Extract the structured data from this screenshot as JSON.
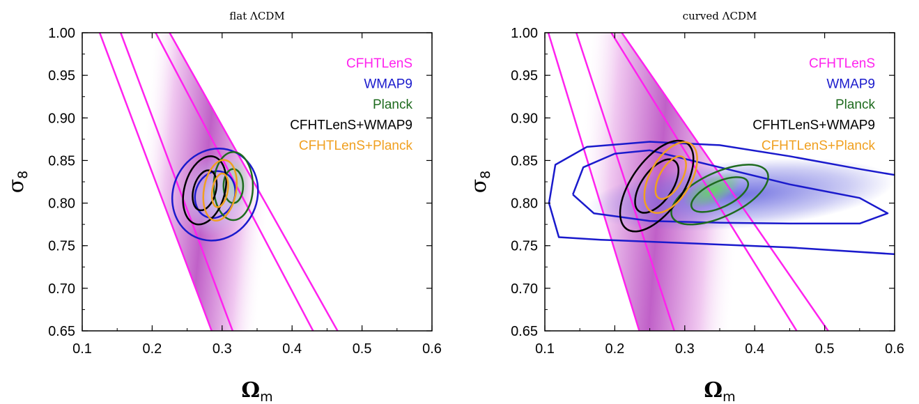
{
  "chart_data": [
    {
      "type": "contour",
      "title": "flat ΛCDM",
      "xlabel": "Ω",
      "xlabel_sub": "m",
      "ylabel": "σ",
      "ylabel_sub": "8",
      "xlim": [
        0.1,
        0.6
      ],
      "ylim": [
        0.65,
        1.0
      ],
      "xticks": [
        "0.1",
        "0.2",
        "0.3",
        "0.4",
        "0.5",
        "0.6"
      ],
      "yticks": [
        "0.65",
        "0.70",
        "0.75",
        "0.80",
        "0.85",
        "0.90",
        "0.95",
        "1.00"
      ],
      "legend_position": "top-right",
      "legend": [
        {
          "name": "CFHTLenS",
          "color": "#ff22ee"
        },
        {
          "name": "WMAP9",
          "color": "#1a1acc"
        },
        {
          "name": "Planck",
          "color": "#1e6b1e"
        },
        {
          "name": "CFHTLenS+WMAP9",
          "color": "#000000"
        },
        {
          "name": "CFHTLenS+Planck",
          "color": "#f0a020"
        }
      ],
      "bands": [
        {
          "series": "CFHTLenS",
          "level": "outer",
          "upper": [
            [
              0.125,
              1.0
            ],
            [
              0.285,
              0.65
            ]
          ],
          "lower": [
            [
              0.225,
              1.0
            ],
            [
              0.465,
              0.65
            ]
          ]
        },
        {
          "series": "CFHTLenS",
          "level": "inner",
          "upper": [
            [
              0.155,
              1.0
            ],
            [
              0.315,
              0.65
            ]
          ],
          "lower": [
            [
              0.205,
              1.0
            ],
            [
              0.43,
              0.65
            ]
          ]
        }
      ],
      "ellipses": [
        {
          "series": "WMAP9",
          "cx": 0.29,
          "cy": 0.81,
          "rx": 0.06,
          "ry": 0.055,
          "rot": 25
        },
        {
          "series": "WMAP9",
          "cx": 0.29,
          "cy": 0.81,
          "rx": 0.028,
          "ry": 0.028,
          "rot": 20
        },
        {
          "series": "Planck",
          "cx": 0.316,
          "cy": 0.82,
          "rx": 0.028,
          "ry": 0.04,
          "rot": 0
        },
        {
          "series": "Planck",
          "cx": 0.316,
          "cy": 0.82,
          "rx": 0.014,
          "ry": 0.02,
          "rot": 0
        },
        {
          "series": "CFHTLenS+WMAP9",
          "cx": 0.275,
          "cy": 0.815,
          "rx": 0.029,
          "ry": 0.041,
          "rot": 15
        },
        {
          "series": "CFHTLenS+WMAP9",
          "cx": 0.275,
          "cy": 0.815,
          "rx": 0.016,
          "ry": 0.024,
          "rot": 15
        },
        {
          "series": "CFHTLenS+Planck",
          "cx": 0.297,
          "cy": 0.815,
          "rx": 0.023,
          "ry": 0.036,
          "rot": 10
        },
        {
          "series": "CFHTLenS+Planck",
          "cx": 0.297,
          "cy": 0.815,
          "rx": 0.011,
          "ry": 0.02,
          "rot": 10
        }
      ],
      "fills": [
        {
          "series": "Planck",
          "cx": 0.316,
          "cy": 0.822,
          "rx": 0.022,
          "ry": 0.03,
          "rot": 0,
          "color": "#8fe08f"
        },
        {
          "series": "WMAP9",
          "cx": 0.29,
          "cy": 0.81,
          "rx": 0.05,
          "ry": 0.05,
          "rot": 20,
          "color": "#c9c9f2"
        }
      ]
    },
    {
      "type": "contour",
      "title": "curved ΛCDM",
      "xlabel": "Ω",
      "xlabel_sub": "m",
      "ylabel": "σ",
      "ylabel_sub": "8",
      "xlim": [
        0.1,
        0.6
      ],
      "ylim": [
        0.65,
        1.0
      ],
      "xticks": [
        "0.1",
        "0.2",
        "0.3",
        "0.4",
        "0.5",
        "0.6"
      ],
      "yticks": [
        "0.65",
        "0.70",
        "0.75",
        "0.80",
        "0.85",
        "0.90",
        "0.95",
        "1.00"
      ],
      "legend_position": "top-right",
      "legend": [
        {
          "name": "CFHTLenS",
          "color": "#ff22ee"
        },
        {
          "name": "WMAP9",
          "color": "#1a1acc"
        },
        {
          "name": "Planck",
          "color": "#1e6b1e"
        },
        {
          "name": "CFHTLenS+WMAP9",
          "color": "#000000"
        },
        {
          "name": "CFHTLenS+Planck",
          "color": "#f0a020"
        }
      ],
      "bands": [
        {
          "series": "CFHTLenS",
          "level": "outer",
          "upper": [
            [
              0.105,
              1.0
            ],
            [
              0.235,
              0.65
            ]
          ],
          "lower": [
            [
              0.21,
              1.0
            ],
            [
              0.505,
              0.65
            ]
          ]
        },
        {
          "series": "CFHTLenS",
          "level": "inner",
          "upper": [
            [
              0.145,
              1.0
            ],
            [
              0.285,
              0.65
            ]
          ],
          "lower": [
            [
              0.195,
              1.0
            ],
            [
              0.46,
              0.65
            ]
          ]
        }
      ],
      "paths": [
        {
          "series": "WMAP9",
          "level": "outer",
          "points": [
            [
              0.6,
              0.74
            ],
            [
              0.45,
              0.748
            ],
            [
              0.3,
              0.753
            ],
            [
              0.18,
              0.757
            ],
            [
              0.12,
              0.76
            ],
            [
              0.106,
              0.8
            ],
            [
              0.115,
              0.845
            ],
            [
              0.16,
              0.866
            ],
            [
              0.25,
              0.872
            ],
            [
              0.35,
              0.868
            ],
            [
              0.45,
              0.855
            ],
            [
              0.55,
              0.84
            ],
            [
              0.6,
              0.833
            ]
          ]
        },
        {
          "series": "WMAP9",
          "level": "inner",
          "points": [
            [
              0.14,
              0.81
            ],
            [
              0.17,
              0.788
            ],
            [
              0.25,
              0.779
            ],
            [
              0.35,
              0.777
            ],
            [
              0.45,
              0.776
            ],
            [
              0.55,
              0.776
            ],
            [
              0.59,
              0.788
            ],
            [
              0.55,
              0.806
            ],
            [
              0.45,
              0.822
            ],
            [
              0.35,
              0.842
            ],
            [
              0.25,
              0.862
            ],
            [
              0.2,
              0.858
            ],
            [
              0.155,
              0.842
            ],
            [
              0.14,
              0.81
            ]
          ]
        }
      ],
      "ellipses": [
        {
          "series": "Planck",
          "cx": 0.35,
          "cy": 0.81,
          "rx": 0.075,
          "ry": 0.026,
          "rot": -25
        },
        {
          "series": "Planck",
          "cx": 0.35,
          "cy": 0.81,
          "rx": 0.044,
          "ry": 0.015,
          "rot": -25
        },
        {
          "series": "CFHTLenS+WMAP9",
          "cx": 0.26,
          "cy": 0.82,
          "rx": 0.075,
          "ry": 0.03,
          "rot": -55
        },
        {
          "series": "CFHTLenS+WMAP9",
          "cx": 0.26,
          "cy": 0.82,
          "rx": 0.044,
          "ry": 0.018,
          "rot": -55
        },
        {
          "series": "CFHTLenS+Planck",
          "cx": 0.28,
          "cy": 0.83,
          "rx": 0.056,
          "ry": 0.024,
          "rot": -60
        },
        {
          "series": "CFHTLenS+Planck",
          "cx": 0.28,
          "cy": 0.83,
          "rx": 0.034,
          "ry": 0.013,
          "rot": -60
        }
      ],
      "fills": [
        {
          "series": "WMAP9",
          "cx": 0.38,
          "cy": 0.81,
          "rx": 0.22,
          "ry": 0.04,
          "rot": -5,
          "color": "#6d6de0"
        },
        {
          "series": "Planck",
          "cx": 0.34,
          "cy": 0.815,
          "rx": 0.045,
          "ry": 0.016,
          "rot": -25,
          "color": "#66d466"
        }
      ]
    }
  ]
}
